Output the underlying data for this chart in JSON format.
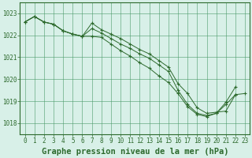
{
  "title": "Graphe pression niveau de la mer (hPa)",
  "hours": [
    0,
    1,
    2,
    3,
    4,
    5,
    6,
    7,
    8,
    9,
    10,
    11,
    12,
    13,
    14,
    15,
    16,
    17,
    18,
    19,
    20,
    21,
    22,
    23
  ],
  "ylim": [
    1017.5,
    1023.5
  ],
  "yticks": [
    1018,
    1019,
    1020,
    1021,
    1022,
    1023
  ],
  "line_top": [
    1022.6,
    1022.85,
    1022.6,
    1022.5,
    1022.2,
    1022.05,
    1021.95,
    1022.55,
    1022.25,
    1022.05,
    1021.85,
    1021.6,
    1021.35,
    1021.15,
    1020.85,
    1020.55,
    1019.8,
    1019.35,
    1018.7,
    1018.45,
    1018.5,
    1018.55,
    1019.3,
    null
  ],
  "line_mid": [
    1022.6,
    1022.85,
    1022.6,
    1022.5,
    1022.2,
    1022.05,
    1021.95,
    1022.3,
    1022.1,
    1021.85,
    1021.6,
    1021.4,
    1021.15,
    1020.95,
    1020.65,
    1020.35,
    1019.5,
    1018.85,
    1018.45,
    1018.35,
    1018.45,
    1018.85,
    1019.3,
    1019.35
  ],
  "line_bot": [
    1022.6,
    1022.85,
    1022.6,
    1022.5,
    1022.2,
    1022.05,
    1021.95,
    1021.95,
    1021.9,
    1021.6,
    1021.3,
    1021.05,
    1020.75,
    1020.5,
    1020.15,
    1019.85,
    1019.35,
    1018.75,
    1018.4,
    1018.3,
    1018.45,
    1018.95,
    1019.65,
    null
  ],
  "line_color": "#2d6a2d",
  "bg_color": "#d8f0e8",
  "grid_color": "#4a9a6a",
  "label_color": "#2d6a2d",
  "title_fontsize": 7.5,
  "tick_fontsize": 5.5
}
